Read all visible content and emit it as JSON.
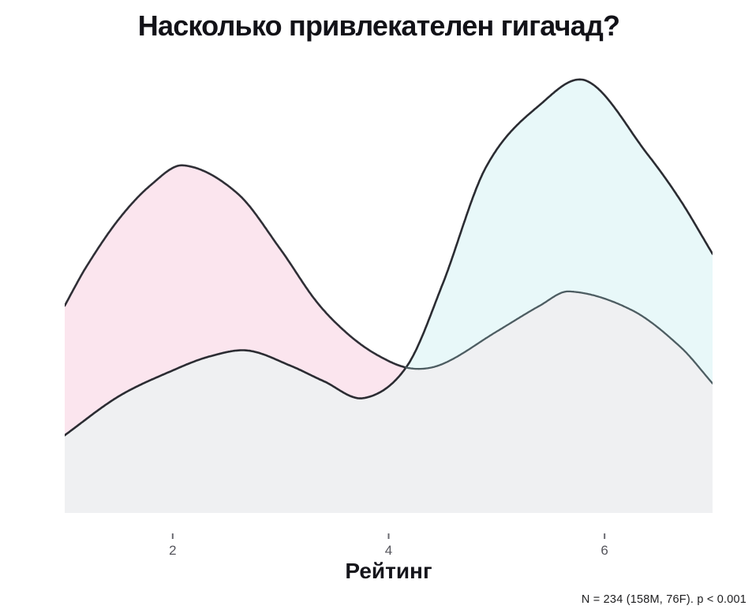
{
  "title": "Насколько привлекателен гигачад?",
  "chart_data": {
    "type": "area",
    "subtype": "overlapping-density-curves",
    "title": "Насколько привлекателен гигачад?",
    "xlabel": "Рейтинг",
    "ylabel": "",
    "xlim": [
      1,
      7
    ],
    "ylim": [
      0,
      1.05
    ],
    "x_ticks": [
      2,
      4,
      6
    ],
    "grid": false,
    "legend": "none",
    "annotation": "N = 234 (158M, 76F). p < 0.001",
    "tick_color": "#6b6b72",
    "tick_label_color": "#55555c",
    "overlap_fill": "#eff0f2",
    "series": [
      {
        "name": "pink-density",
        "fill": "#fbe5ee",
        "stroke": "#2f2f36",
        "stroke_after_crossing": "#4d5d62",
        "points": [
          [
            1.0,
            0.48
          ],
          [
            1.2,
            0.57
          ],
          [
            1.5,
            0.68
          ],
          [
            1.8,
            0.76
          ],
          [
            2.1,
            0.805
          ],
          [
            2.6,
            0.74
          ],
          [
            3.0,
            0.61
          ],
          [
            3.33,
            0.49
          ],
          [
            3.62,
            0.415
          ],
          [
            3.9,
            0.365
          ],
          [
            4.2,
            0.335
          ],
          [
            4.5,
            0.345
          ],
          [
            5.0,
            0.42
          ],
          [
            5.4,
            0.48
          ],
          [
            5.67,
            0.513
          ],
          [
            6.25,
            0.47
          ],
          [
            6.7,
            0.385
          ],
          [
            7.0,
            0.3
          ]
        ]
      },
      {
        "name": "cyan-density",
        "fill": "#e8f8f9",
        "stroke": "#2b2c32",
        "points": [
          [
            1.0,
            0.18
          ],
          [
            1.5,
            0.27
          ],
          [
            2.0,
            0.33
          ],
          [
            2.35,
            0.363
          ],
          [
            2.7,
            0.376
          ],
          [
            3.1,
            0.34
          ],
          [
            3.4,
            0.305
          ],
          [
            3.77,
            0.266
          ],
          [
            4.17,
            0.34
          ],
          [
            4.5,
            0.53
          ],
          [
            4.9,
            0.8
          ],
          [
            5.4,
            0.945
          ],
          [
            5.84,
            1.0
          ],
          [
            6.4,
            0.83
          ],
          [
            6.7,
            0.725
          ],
          [
            7.0,
            0.6
          ]
        ]
      }
    ]
  }
}
